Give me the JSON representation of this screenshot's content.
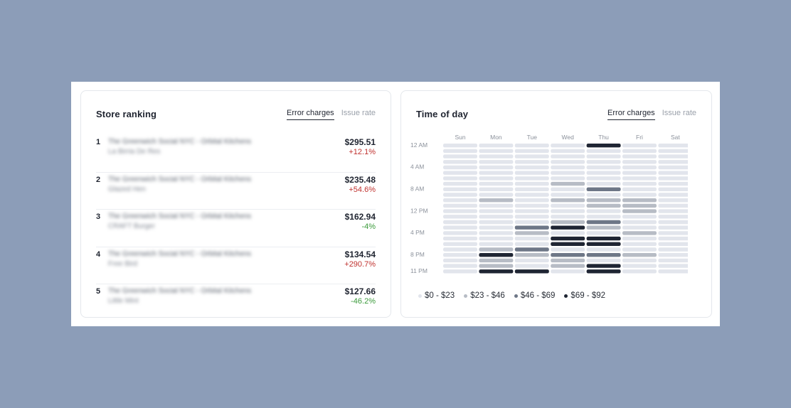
{
  "colors": {
    "background": "#8c9db8",
    "level0": "#e2e5ec",
    "level1": "#b7bcc5",
    "level2": "#6e7787",
    "level3": "#1f2533",
    "up": "#c0322f",
    "down": "#3a9a3a"
  },
  "ranking": {
    "title": "Store ranking",
    "tabs": [
      "Error charges",
      "Issue rate"
    ],
    "active_tab": 0,
    "rows": [
      {
        "rank": "1",
        "name": "The Greenwich Social NYC - Orbital Kitchens",
        "sub": "La Birria De Res",
        "amount": "$295.51",
        "change": "+12.1%",
        "direction": "up"
      },
      {
        "rank": "2",
        "name": "The Greenwich Social NYC - Orbital Kitchens",
        "sub": "Glazed Hen",
        "amount": "$235.48",
        "change": "+54.6%",
        "direction": "up"
      },
      {
        "rank": "3",
        "name": "The Greenwich Social NYC - Orbital Kitchens",
        "sub": "CRAFT Burger",
        "amount": "$162.94",
        "change": "-4%",
        "direction": "down"
      },
      {
        "rank": "4",
        "name": "The Greenwich Social NYC - Orbital Kitchens",
        "sub": "Free Bird",
        "amount": "$134.54",
        "change": "+290.7%",
        "direction": "up"
      },
      {
        "rank": "5",
        "name": "The Greenwich Social NYC - Orbital Kitchens",
        "sub": "Little Mint",
        "amount": "$127.66",
        "change": "-46.2%",
        "direction": "down"
      }
    ]
  },
  "time_of_day": {
    "title": "Time of day",
    "tabs": [
      "Error charges",
      "Issue rate"
    ],
    "active_tab": 0,
    "legend": [
      "$0 - $23",
      "$23 - $46",
      "$46 - $69",
      "$69 - $92"
    ]
  },
  "chart_data": {
    "type": "heatmap",
    "title": "Time of day",
    "x_categories": [
      "Sun",
      "Mon",
      "Tue",
      "Wed",
      "Thu",
      "Fri",
      "Sat"
    ],
    "y_tick_labels": [
      "12 AM",
      "4 AM",
      "8 AM",
      "12 PM",
      "4 PM",
      "8 PM",
      "11 PM"
    ],
    "y_tick_hours": [
      0,
      4,
      8,
      12,
      16,
      20,
      23
    ],
    "hours": 24,
    "value_bins": [
      "$0 - $23",
      "$23 - $46",
      "$46 - $69",
      "$69 - $92"
    ],
    "levels": [
      [
        0,
        0,
        0,
        0,
        3,
        0,
        0
      ],
      [
        0,
        0,
        0,
        0,
        0,
        0,
        0
      ],
      [
        0,
        0,
        0,
        0,
        0,
        0,
        0
      ],
      [
        0,
        0,
        0,
        0,
        0,
        0,
        0
      ],
      [
        0,
        0,
        0,
        0,
        0,
        0,
        0
      ],
      [
        0,
        0,
        0,
        0,
        0,
        0,
        0
      ],
      [
        0,
        0,
        0,
        0,
        0,
        0,
        0
      ],
      [
        0,
        0,
        0,
        1,
        0,
        0,
        0
      ],
      [
        0,
        0,
        0,
        0,
        2,
        0,
        0
      ],
      [
        0,
        0,
        0,
        0,
        0,
        0,
        0
      ],
      [
        0,
        1,
        0,
        1,
        1,
        1,
        0
      ],
      [
        0,
        0,
        0,
        0,
        1,
        1,
        0
      ],
      [
        0,
        0,
        0,
        0,
        0,
        1,
        0
      ],
      [
        0,
        0,
        0,
        0,
        0,
        0,
        0
      ],
      [
        0,
        0,
        0,
        1,
        2,
        0,
        0
      ],
      [
        0,
        0,
        2,
        3,
        1,
        0,
        0
      ],
      [
        0,
        0,
        1,
        0,
        0,
        1,
        0
      ],
      [
        0,
        0,
        0,
        3,
        3,
        0,
        0
      ],
      [
        0,
        0,
        0,
        3,
        3,
        0,
        0
      ],
      [
        0,
        1,
        2,
        0,
        0,
        0,
        0
      ],
      [
        0,
        3,
        1,
        2,
        2,
        1,
        0
      ],
      [
        0,
        1,
        0,
        1,
        0,
        0,
        0
      ],
      [
        0,
        1,
        0,
        1,
        3,
        0,
        0
      ],
      [
        0,
        3,
        3,
        0,
        3,
        0,
        0
      ]
    ]
  }
}
